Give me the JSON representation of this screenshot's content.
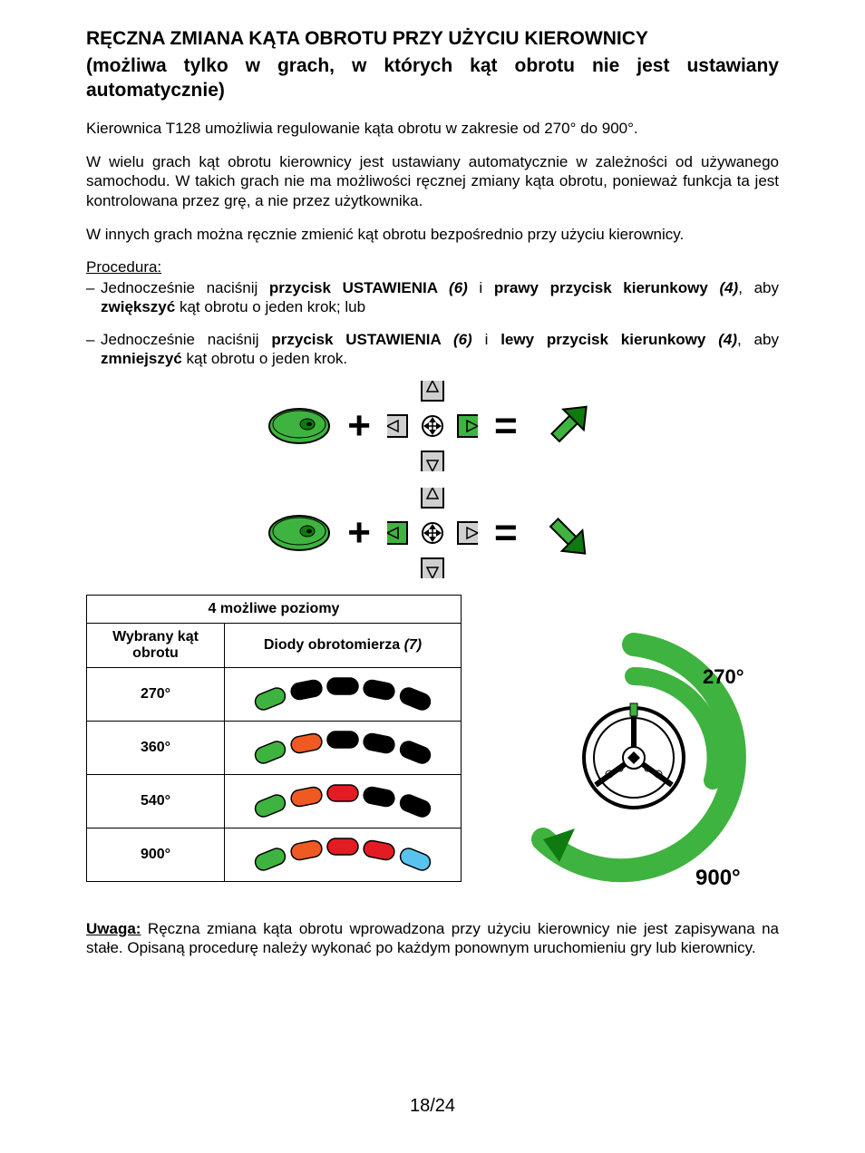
{
  "colors": {
    "green": "#3fb33f",
    "green_dark": "#0f7a0f",
    "orange": "#ef5a22",
    "red": "#e31b23",
    "blue": "#59c3ef",
    "black": "#000000",
    "grey": "#cfcfcf",
    "white": "#ffffff"
  },
  "heading": {
    "line1": "RĘCZNA ZMIANA KĄTA OBROTU PRZY UŻYCIU KIEROWNICY",
    "line2_open": "(możliwa tylko w",
    "line2_nbsp1": "grach, w",
    "line2_rest": "których kąt obrotu nie jest ustawiany automatycznie)"
  },
  "para1": "Kierownica T128 umożliwia regulowanie kąta obrotu w zakresie od 270° do 900°.",
  "para2": "W wielu grach kąt obrotu kierownicy jest ustawiany automatycznie w zależności od używanego samochodu. W takich grach nie ma możliwości ręcznej zmiany kąta obrotu, ponieważ funkcja ta jest kontrolowana przez grę, a nie przez użytkownika.",
  "para3": "W innych grach można ręcznie zmienić kąt obrotu bezpośrednio przy użyciu kierownicy.",
  "procedure_label": "Procedura:",
  "proc1": {
    "t0": "Jednocześnie naciśnij ",
    "t1": "przycisk USTAWIENIA ",
    "t2": "(6)",
    "t3": " i ",
    "t4": "prawy przycisk kierunkowy ",
    "t5": "(4)",
    "t6": ", aby ",
    "t7": "zwiększyć",
    "t8": " kąt obrotu o jeden krok; lub"
  },
  "proc2": {
    "t0": "Jednocześnie naciśnij ",
    "t1": "przycisk USTAWIENIA ",
    "t2": "(6)",
    "t3": " i ",
    "t4": "lewy przycisk kierunkowy ",
    "t5": "(4)",
    "t6": ", aby ",
    "t7": "zmniejszyć",
    "t8": " kąt obrotu o jeden krok."
  },
  "table": {
    "caption": "4 możliwe poziomy",
    "col1": "Wybrany kąt obrotu",
    "col2": "Diody obrotomierza ",
    "col2_ref": "(7)",
    "rows": [
      {
        "angle": "270°",
        "leds": [
          "green",
          "black",
          "black",
          "black",
          "black"
        ]
      },
      {
        "angle": "360°",
        "leds": [
          "green",
          "orange",
          "black",
          "black",
          "black"
        ]
      },
      {
        "angle": "540°",
        "leds": [
          "green",
          "orange",
          "red",
          "black",
          "black"
        ]
      },
      {
        "angle": "900°",
        "leds": [
          "green",
          "orange",
          "red",
          "red",
          "blue"
        ]
      }
    ]
  },
  "wheel": {
    "label_top": "270°",
    "label_bottom": "900°"
  },
  "note": {
    "label": "Uwaga:",
    "text": " Ręczna zmiana kąta obrotu wprowadzona przy użyciu kierownicy nie jest zapisywana na stałe. Opisaną procedurę należy wykonać po każdym ponownym uruchomieniu gry lub kierownicy."
  },
  "page_number": "18/24"
}
